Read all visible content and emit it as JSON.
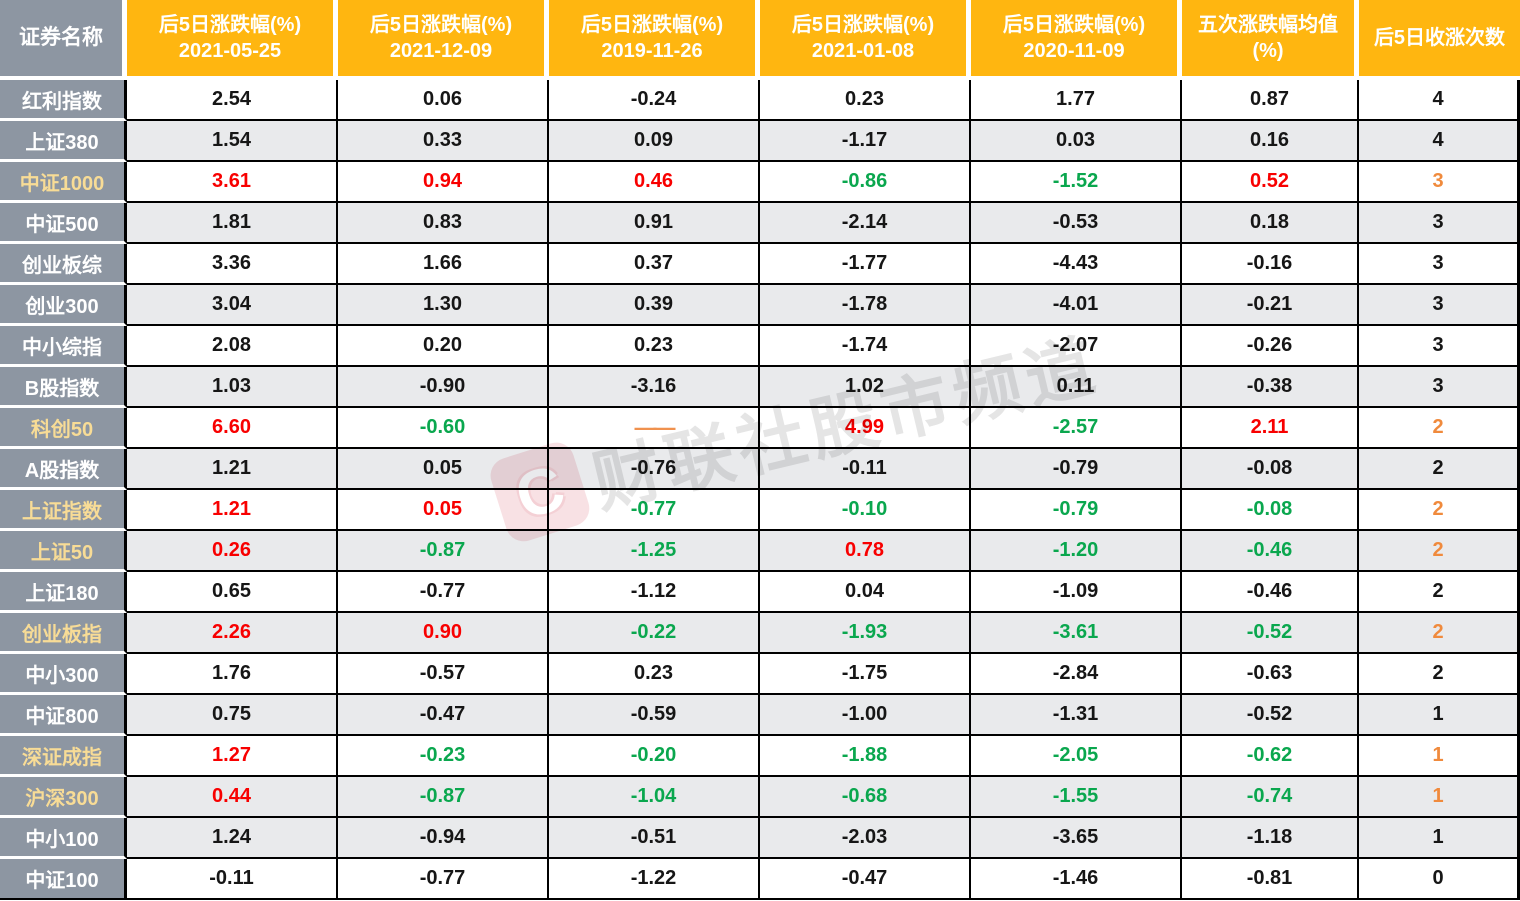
{
  "chart_data": {
    "type": "table",
    "corner_header": "证券名称",
    "columns": [
      {
        "title": "后5日涨跌幅(%)",
        "subtitle": "2021-05-25"
      },
      {
        "title": "后5日涨跌幅(%)",
        "subtitle": "2021-12-09"
      },
      {
        "title": "后5日涨跌幅(%)",
        "subtitle": "2019-11-26"
      },
      {
        "title": "后5日涨跌幅(%)",
        "subtitle": "2021-01-08"
      },
      {
        "title": "后5日涨跌幅(%)",
        "subtitle": "2020-11-09"
      },
      {
        "title": "五次涨跌幅均值",
        "subtitle": "(%)"
      },
      {
        "title": "后5日收涨次数",
        "subtitle": ""
      }
    ],
    "rows": [
      {
        "name": "红利指数",
        "name_highlight": false,
        "shaded": false,
        "cells": [
          {
            "text": "2.54",
            "color": "black"
          },
          {
            "text": "0.06",
            "color": "black"
          },
          {
            "text": "-0.24",
            "color": "black"
          },
          {
            "text": "0.23",
            "color": "black"
          },
          {
            "text": "1.77",
            "color": "black"
          },
          {
            "text": "0.87",
            "color": "black"
          },
          {
            "text": "4",
            "color": "black"
          }
        ]
      },
      {
        "name": "上证380",
        "name_highlight": false,
        "shaded": true,
        "cells": [
          {
            "text": "1.54",
            "color": "black"
          },
          {
            "text": "0.33",
            "color": "black"
          },
          {
            "text": "0.09",
            "color": "black"
          },
          {
            "text": "-1.17",
            "color": "black"
          },
          {
            "text": "0.03",
            "color": "black"
          },
          {
            "text": "0.16",
            "color": "black"
          },
          {
            "text": "4",
            "color": "black"
          }
        ]
      },
      {
        "name": "中证1000",
        "name_highlight": true,
        "shaded": false,
        "cells": [
          {
            "text": "3.61",
            "color": "red"
          },
          {
            "text": "0.94",
            "color": "red"
          },
          {
            "text": "0.46",
            "color": "red"
          },
          {
            "text": "-0.86",
            "color": "green"
          },
          {
            "text": "-1.52",
            "color": "green"
          },
          {
            "text": "0.52",
            "color": "red"
          },
          {
            "text": "3",
            "color": "orange"
          }
        ]
      },
      {
        "name": "中证500",
        "name_highlight": false,
        "shaded": true,
        "cells": [
          {
            "text": "1.81",
            "color": "black"
          },
          {
            "text": "0.83",
            "color": "black"
          },
          {
            "text": "0.91",
            "color": "black"
          },
          {
            "text": "-2.14",
            "color": "black"
          },
          {
            "text": "-0.53",
            "color": "black"
          },
          {
            "text": "0.18",
            "color": "black"
          },
          {
            "text": "3",
            "color": "black"
          }
        ]
      },
      {
        "name": "创业板综",
        "name_highlight": false,
        "shaded": false,
        "cells": [
          {
            "text": "3.36",
            "color": "black"
          },
          {
            "text": "1.66",
            "color": "black"
          },
          {
            "text": "0.37",
            "color": "black"
          },
          {
            "text": "-1.77",
            "color": "black"
          },
          {
            "text": "-4.43",
            "color": "black"
          },
          {
            "text": "-0.16",
            "color": "black"
          },
          {
            "text": "3",
            "color": "black"
          }
        ]
      },
      {
        "name": "创业300",
        "name_highlight": false,
        "shaded": true,
        "cells": [
          {
            "text": "3.04",
            "color": "black"
          },
          {
            "text": "1.30",
            "color": "black"
          },
          {
            "text": "0.39",
            "color": "black"
          },
          {
            "text": "-1.78",
            "color": "black"
          },
          {
            "text": "-4.01",
            "color": "black"
          },
          {
            "text": "-0.21",
            "color": "black"
          },
          {
            "text": "3",
            "color": "black"
          }
        ]
      },
      {
        "name": "中小综指",
        "name_highlight": false,
        "shaded": false,
        "cells": [
          {
            "text": "2.08",
            "color": "black"
          },
          {
            "text": "0.20",
            "color": "black"
          },
          {
            "text": "0.23",
            "color": "black"
          },
          {
            "text": "-1.74",
            "color": "black"
          },
          {
            "text": "-2.07",
            "color": "black"
          },
          {
            "text": "-0.26",
            "color": "black"
          },
          {
            "text": "3",
            "color": "black"
          }
        ]
      },
      {
        "name": "B股指数",
        "name_highlight": false,
        "shaded": true,
        "cells": [
          {
            "text": "1.03",
            "color": "black"
          },
          {
            "text": "-0.90",
            "color": "black"
          },
          {
            "text": "-3.16",
            "color": "black"
          },
          {
            "text": "1.02",
            "color": "black"
          },
          {
            "text": "0.11",
            "color": "black"
          },
          {
            "text": "-0.38",
            "color": "black"
          },
          {
            "text": "3",
            "color": "black"
          }
        ]
      },
      {
        "name": "科创50",
        "name_highlight": true,
        "shaded": false,
        "cells": [
          {
            "text": "6.60",
            "color": "red"
          },
          {
            "text": "-0.60",
            "color": "green"
          },
          {
            "text": "——",
            "color": "dash"
          },
          {
            "text": "4.99",
            "color": "red"
          },
          {
            "text": "-2.57",
            "color": "green"
          },
          {
            "text": "2.11",
            "color": "red"
          },
          {
            "text": "2",
            "color": "orange"
          }
        ]
      },
      {
        "name": "A股指数",
        "name_highlight": false,
        "shaded": true,
        "cells": [
          {
            "text": "1.21",
            "color": "black"
          },
          {
            "text": "0.05",
            "color": "black"
          },
          {
            "text": "-0.76",
            "color": "black"
          },
          {
            "text": "-0.11",
            "color": "black"
          },
          {
            "text": "-0.79",
            "color": "black"
          },
          {
            "text": "-0.08",
            "color": "black"
          },
          {
            "text": "2",
            "color": "black"
          }
        ]
      },
      {
        "name": "上证指数",
        "name_highlight": true,
        "shaded": false,
        "cells": [
          {
            "text": "1.21",
            "color": "red"
          },
          {
            "text": "0.05",
            "color": "red"
          },
          {
            "text": "-0.77",
            "color": "green"
          },
          {
            "text": "-0.10",
            "color": "green"
          },
          {
            "text": "-0.79",
            "color": "green"
          },
          {
            "text": "-0.08",
            "color": "green"
          },
          {
            "text": "2",
            "color": "orange"
          }
        ]
      },
      {
        "name": "上证50",
        "name_highlight": true,
        "shaded": true,
        "cells": [
          {
            "text": "0.26",
            "color": "red"
          },
          {
            "text": "-0.87",
            "color": "green"
          },
          {
            "text": "-1.25",
            "color": "green"
          },
          {
            "text": "0.78",
            "color": "red"
          },
          {
            "text": "-1.20",
            "color": "green"
          },
          {
            "text": "-0.46",
            "color": "green"
          },
          {
            "text": "2",
            "color": "orange"
          }
        ]
      },
      {
        "name": "上证180",
        "name_highlight": false,
        "shaded": false,
        "cells": [
          {
            "text": "0.65",
            "color": "black"
          },
          {
            "text": "-0.77",
            "color": "black"
          },
          {
            "text": "-1.12",
            "color": "black"
          },
          {
            "text": "0.04",
            "color": "black"
          },
          {
            "text": "-1.09",
            "color": "black"
          },
          {
            "text": "-0.46",
            "color": "black"
          },
          {
            "text": "2",
            "color": "black"
          }
        ]
      },
      {
        "name": "创业板指",
        "name_highlight": true,
        "shaded": true,
        "cells": [
          {
            "text": "2.26",
            "color": "red"
          },
          {
            "text": "0.90",
            "color": "red"
          },
          {
            "text": "-0.22",
            "color": "green"
          },
          {
            "text": "-1.93",
            "color": "green"
          },
          {
            "text": "-3.61",
            "color": "green"
          },
          {
            "text": "-0.52",
            "color": "green"
          },
          {
            "text": "2",
            "color": "orange"
          }
        ]
      },
      {
        "name": "中小300",
        "name_highlight": false,
        "shaded": false,
        "cells": [
          {
            "text": "1.76",
            "color": "black"
          },
          {
            "text": "-0.57",
            "color": "black"
          },
          {
            "text": "0.23",
            "color": "black"
          },
          {
            "text": "-1.75",
            "color": "black"
          },
          {
            "text": "-2.84",
            "color": "black"
          },
          {
            "text": "-0.63",
            "color": "black"
          },
          {
            "text": "2",
            "color": "black"
          }
        ]
      },
      {
        "name": "中证800",
        "name_highlight": false,
        "shaded": true,
        "cells": [
          {
            "text": "0.75",
            "color": "black"
          },
          {
            "text": "-0.47",
            "color": "black"
          },
          {
            "text": "-0.59",
            "color": "black"
          },
          {
            "text": "-1.00",
            "color": "black"
          },
          {
            "text": "-1.31",
            "color": "black"
          },
          {
            "text": "-0.52",
            "color": "black"
          },
          {
            "text": "1",
            "color": "black"
          }
        ]
      },
      {
        "name": "深证成指",
        "name_highlight": true,
        "shaded": false,
        "cells": [
          {
            "text": "1.27",
            "color": "red"
          },
          {
            "text": "-0.23",
            "color": "green"
          },
          {
            "text": "-0.20",
            "color": "green"
          },
          {
            "text": "-1.88",
            "color": "green"
          },
          {
            "text": "-2.05",
            "color": "green"
          },
          {
            "text": "-0.62",
            "color": "green"
          },
          {
            "text": "1",
            "color": "orange"
          }
        ]
      },
      {
        "name": "沪深300",
        "name_highlight": true,
        "shaded": true,
        "cells": [
          {
            "text": "0.44",
            "color": "red"
          },
          {
            "text": "-0.87",
            "color": "green"
          },
          {
            "text": "-1.04",
            "color": "green"
          },
          {
            "text": "-0.68",
            "color": "green"
          },
          {
            "text": "-1.55",
            "color": "green"
          },
          {
            "text": "-0.74",
            "color": "green"
          },
          {
            "text": "1",
            "color": "orange"
          }
        ]
      },
      {
        "name": "中小100",
        "name_highlight": false,
        "shaded": true,
        "cells": [
          {
            "text": "1.24",
            "color": "black"
          },
          {
            "text": "-0.94",
            "color": "black"
          },
          {
            "text": "-0.51",
            "color": "black"
          },
          {
            "text": "-2.03",
            "color": "black"
          },
          {
            "text": "-3.65",
            "color": "black"
          },
          {
            "text": "-1.18",
            "color": "black"
          },
          {
            "text": "1",
            "color": "black"
          }
        ]
      },
      {
        "name": "中证100",
        "name_highlight": false,
        "shaded": false,
        "cells": [
          {
            "text": "-0.11",
            "color": "black"
          },
          {
            "text": "-0.77",
            "color": "black"
          },
          {
            "text": "-1.22",
            "color": "black"
          },
          {
            "text": "-0.47",
            "color": "black"
          },
          {
            "text": "-1.46",
            "color": "black"
          },
          {
            "text": "-0.81",
            "color": "black"
          },
          {
            "text": "0",
            "color": "black"
          }
        ]
      }
    ]
  },
  "watermark": {
    "logo_letter": "C",
    "text": "财联社股市频道"
  },
  "colors": {
    "header_bg": "#FFB610",
    "header_text": "#FFFFFF",
    "name_col_bg": "#8D96A2",
    "name_text": "#FFFFFF",
    "name_highlight_text": "#F8DC96",
    "row_shaded_bg": "#E9EAEC",
    "row_plain_bg": "#FFFFFF",
    "value_black": "#161616",
    "value_red": "#F80000",
    "value_green": "#0AA74E",
    "value_orange": "#F08A3C",
    "dash_orange": "#F0914E",
    "grid_black": "#000000",
    "separator_white": "#FFFFFF"
  }
}
